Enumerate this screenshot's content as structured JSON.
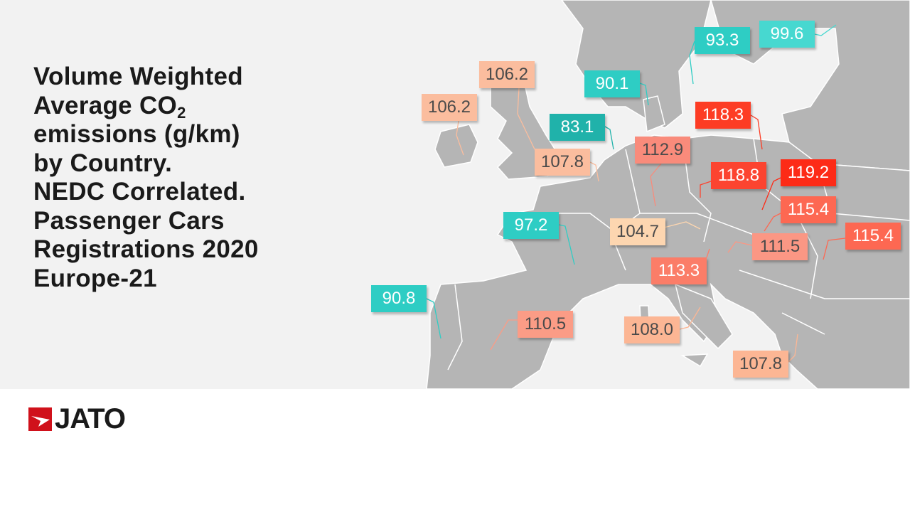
{
  "title": {
    "line1": "Volume Weighted",
    "line2_pre": "Average CO",
    "line2_sub": "2",
    "line3": "emissions (g/km)",
    "line4": "by Country.",
    "line5": "NEDC Correlated.",
    "line6": "Passenger Cars",
    "line7": "Registrations 2020",
    "line8": "Europe-21"
  },
  "labels": [
    {
      "value": "93.3",
      "color": "#2ecdc4"
    },
    {
      "value": "99.6",
      "color": "#47d8d0"
    },
    {
      "value": "90.1",
      "color": "#2ecdc4"
    },
    {
      "value": "106.2",
      "color": "#fbbd9e"
    },
    {
      "value": "106.2",
      "color": "#fbbd9e"
    },
    {
      "value": "83.1",
      "color": "#20b2aa"
    },
    {
      "value": "107.8",
      "color": "#fbbd9e"
    },
    {
      "value": "112.9",
      "color": "#f98b7b"
    },
    {
      "value": "118.3",
      "color": "#fd3c24"
    },
    {
      "value": "118.8",
      "color": "#fc4430"
    },
    {
      "value": "119.2",
      "color": "#fd2b17"
    },
    {
      "value": "115.4",
      "color": "#fd6852"
    },
    {
      "value": "115.4",
      "color": "#fd6852"
    },
    {
      "value": "111.5",
      "color": "#fb9784"
    },
    {
      "value": "104.7",
      "color": "#fdd6b0"
    },
    {
      "value": "97.2",
      "color": "#2ecdc4"
    },
    {
      "value": "113.3",
      "color": "#fb7d68"
    },
    {
      "value": "90.8",
      "color": "#2ecdc4"
    },
    {
      "value": "110.5",
      "color": "#fb9c86"
    },
    {
      "value": "108.0",
      "color": "#fcb694"
    },
    {
      "value": "107.8",
      "color": "#fcb694"
    }
  ],
  "logo": {
    "text": "JATO",
    "color": "#d0111b"
  }
}
